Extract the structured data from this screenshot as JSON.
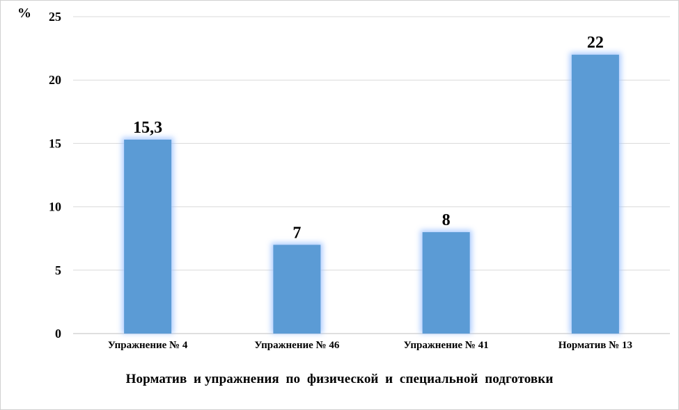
{
  "chart_data": {
    "type": "bar",
    "ylabel": "%",
    "xlabel": "Норматив  и упражнения  по  физической  и  специальной  подготовки",
    "categories": [
      "Упражнение № 4",
      "Упражнение № 46",
      "Упражнение № 41",
      "Норматив  № 13"
    ],
    "values": [
      15.3,
      7,
      8,
      22
    ],
    "data_labels": [
      "15,3",
      "7",
      "8",
      "22"
    ],
    "ylim": [
      0,
      25
    ],
    "yticks": [
      "0",
      "5",
      "10",
      "15",
      "20",
      "25"
    ],
    "grid": true,
    "legend": "none",
    "bar_color": "#5b9bd5",
    "glow_color": "#9fc3ff"
  }
}
